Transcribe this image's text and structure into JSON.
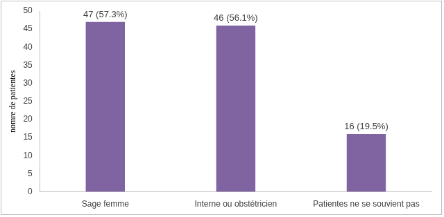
{
  "chart_data": {
    "type": "bar",
    "y_label": "nomre de patientes",
    "categories": [
      "Sage femme",
      "Interne ou obstétricien",
      "Patientes ne se souvient pas"
    ],
    "values": [
      47,
      46,
      16
    ],
    "value_labels": [
      "47 (57.3%)",
      "46 (56.1%)",
      "16 (19.5%)"
    ],
    "color": "#8064a2",
    "ylim": [
      0,
      50
    ],
    "yticks": [
      0,
      5,
      10,
      15,
      20,
      25,
      30,
      35,
      40,
      45,
      50
    ],
    "grid": false,
    "data_labels": true
  }
}
